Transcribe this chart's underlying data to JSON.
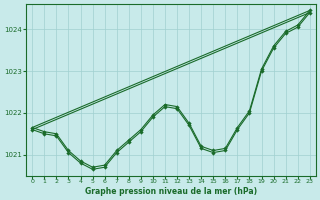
{
  "title": "Graphe pression niveau de la mer (hPa)",
  "bg_color": "#c8eaea",
  "line_color": "#1a6b2a",
  "grid_color": "#a0d0d0",
  "xlabel_color": "#1a6b2a",
  "xlim": [
    -0.5,
    23.5
  ],
  "ylim": [
    1020.5,
    1024.6
  ],
  "yticks": [
    1021,
    1022,
    1023,
    1024
  ],
  "xticks": [
    0,
    1,
    2,
    3,
    4,
    5,
    6,
    7,
    8,
    9,
    10,
    11,
    12,
    13,
    14,
    15,
    16,
    17,
    18,
    19,
    20,
    21,
    22,
    23
  ],
  "series_straight1": {
    "x": [
      0,
      23
    ],
    "y": [
      1021.65,
      1024.45
    ]
  },
  "series_straight2": {
    "x": [
      0,
      23
    ],
    "y": [
      1021.6,
      1024.4
    ]
  },
  "series_curved1": {
    "x": [
      0,
      1,
      2,
      3,
      4,
      5,
      6,
      7,
      8,
      9,
      10,
      11,
      12,
      13,
      14,
      15,
      16,
      17,
      18,
      19,
      20,
      21,
      22,
      23
    ],
    "y": [
      1021.65,
      1021.55,
      1021.5,
      1021.1,
      1020.85,
      1020.7,
      1020.75,
      1021.1,
      1021.35,
      1021.6,
      1021.95,
      1022.2,
      1022.15,
      1021.75,
      1021.2,
      1021.1,
      1021.15,
      1021.65,
      1022.05,
      1023.05,
      1023.6,
      1023.95,
      1024.1,
      1024.45
    ]
  },
  "series_curved2": {
    "x": [
      0,
      1,
      2,
      3,
      4,
      5,
      6,
      7,
      8,
      9,
      10,
      11,
      12,
      13,
      14,
      15,
      16,
      17,
      18,
      19,
      20,
      21,
      22,
      23
    ],
    "y": [
      1021.6,
      1021.5,
      1021.45,
      1021.05,
      1020.8,
      1020.65,
      1020.7,
      1021.05,
      1021.3,
      1021.55,
      1021.9,
      1022.15,
      1022.1,
      1021.7,
      1021.15,
      1021.05,
      1021.1,
      1021.6,
      1022.0,
      1023.0,
      1023.55,
      1023.9,
      1024.05,
      1024.4
    ]
  }
}
